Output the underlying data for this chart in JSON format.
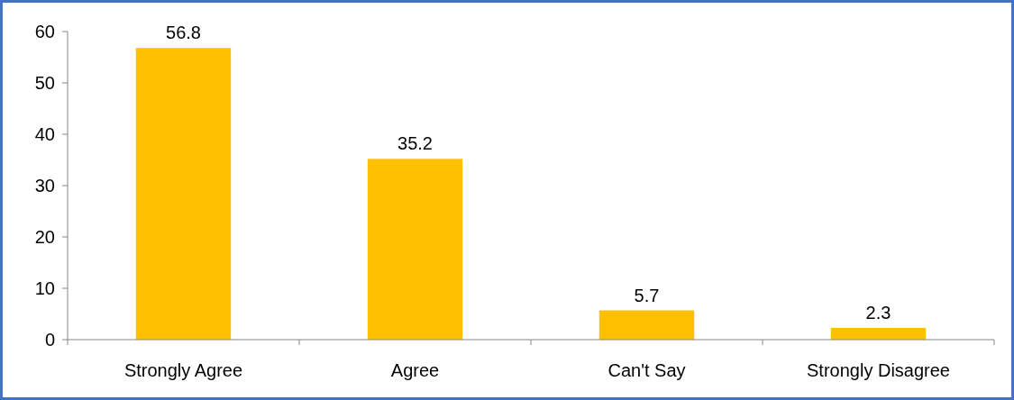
{
  "chart_data": {
    "type": "bar",
    "categories": [
      "Strongly Agree",
      "Agree",
      "Can't Say",
      "Strongly Disagree"
    ],
    "values": [
      56.8,
      35.2,
      5.7,
      2.3
    ],
    "color": "#ffc000",
    "ylim": [
      0,
      60
    ],
    "yticks": [
      0,
      10,
      20,
      30,
      40,
      50,
      60
    ],
    "data_labels": true,
    "grid": false
  }
}
